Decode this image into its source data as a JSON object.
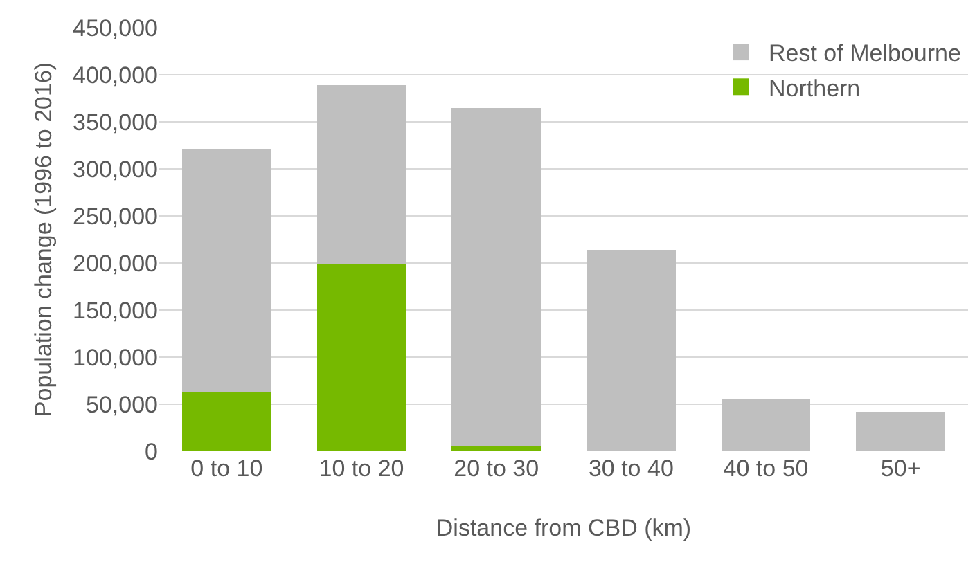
{
  "chart_data": {
    "type": "bar",
    "stacked": true,
    "xlabel": "Distance from CBD (km)",
    "ylabel": "Population change (1996 to 2016)",
    "categories": [
      "0 to 10",
      "10 to 20",
      "20 to 30",
      "30 to 40",
      "40 to 50",
      "50+"
    ],
    "series": [
      {
        "name": "Northern",
        "color": "#76b900",
        "values": [
          63000,
          199000,
          6000,
          0,
          0,
          0
        ]
      },
      {
        "name": "Rest of Melbourne",
        "color": "#bfbfbf",
        "values": [
          258000,
          190000,
          359000,
          214000,
          55000,
          42000
        ]
      }
    ],
    "ylim": [
      0,
      450000
    ],
    "yticks": [
      {
        "value": 0,
        "label": "0"
      },
      {
        "value": 50000,
        "label": "50,000"
      },
      {
        "value": 100000,
        "label": "100,000"
      },
      {
        "value": 150000,
        "label": "150,000"
      },
      {
        "value": 200000,
        "label": "200,000"
      },
      {
        "value": 250000,
        "label": "250,000"
      },
      {
        "value": 300000,
        "label": "300,000"
      },
      {
        "value": 350000,
        "label": "350,000"
      },
      {
        "value": 400000,
        "label": "400,000"
      },
      {
        "value": 450000,
        "label": "450,000"
      }
    ],
    "grid": "y",
    "legend": "top right"
  }
}
